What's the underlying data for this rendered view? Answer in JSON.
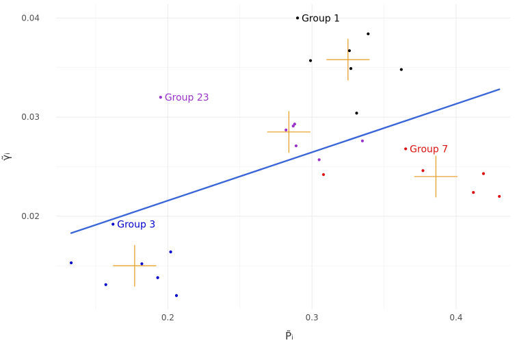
{
  "chart_data": {
    "type": "scatter",
    "xlabel": "P̃ᵢ",
    "ylabel": "γ̃ᵢ",
    "xlim": [
      0.1225,
      0.4375
    ],
    "ylim": [
      0.0106,
      0.0414
    ],
    "x_ticks": [
      {
        "value": 0.2,
        "label": "0.2"
      },
      {
        "value": 0.3,
        "label": "0.3"
      },
      {
        "value": 0.4,
        "label": "0.4"
      }
    ],
    "y_ticks": [
      {
        "value": 0.02,
        "label": "0.02"
      },
      {
        "value": 0.03,
        "label": "0.03"
      },
      {
        "value": 0.04,
        "label": "0.04"
      }
    ],
    "grid": true,
    "series": [
      {
        "name": "Group 1",
        "color": "#000000",
        "label": {
          "text": "Group 1",
          "x": 0.29,
          "y": 0.04
        },
        "points": [
          [
            0.29,
            0.04
          ],
          [
            0.339,
            0.0384
          ],
          [
            0.326,
            0.0367
          ],
          [
            0.299,
            0.0357
          ],
          [
            0.327,
            0.0349
          ],
          [
            0.362,
            0.0348
          ],
          [
            0.331,
            0.0304
          ]
        ],
        "center": [
          0.325,
          0.0358
        ]
      },
      {
        "name": "Group 23",
        "color": "#9933cc",
        "label": {
          "text": "Group 23",
          "x": 0.195,
          "y": 0.032
        },
        "points": [
          [
            0.195,
            0.032
          ],
          [
            0.288,
            0.0293
          ],
          [
            0.287,
            0.0291
          ],
          [
            0.282,
            0.0287
          ],
          [
            0.289,
            0.0271
          ],
          [
            0.335,
            0.0276
          ],
          [
            0.305,
            0.0257
          ]
        ],
        "center": [
          0.284,
          0.0285
        ]
      },
      {
        "name": "Group 7",
        "color": "#dd1111",
        "label": {
          "text": "Group 7",
          "x": 0.365,
          "y": 0.0268
        },
        "points": [
          [
            0.365,
            0.0268
          ],
          [
            0.377,
            0.0246
          ],
          [
            0.308,
            0.0242
          ],
          [
            0.419,
            0.0243
          ],
          [
            0.412,
            0.0224
          ],
          [
            0.43,
            0.022
          ]
        ],
        "center": [
          0.386,
          0.024
        ]
      },
      {
        "name": "Group 3",
        "color": "#0000cc",
        "label": {
          "text": "Group 3",
          "x": 0.162,
          "y": 0.0192
        },
        "points": [
          [
            0.162,
            0.0192
          ],
          [
            0.202,
            0.0164
          ],
          [
            0.133,
            0.0153
          ],
          [
            0.182,
            0.0152
          ],
          [
            0.193,
            0.0138
          ],
          [
            0.157,
            0.0131
          ],
          [
            0.206,
            0.012
          ]
        ],
        "center": [
          0.177,
          0.015
        ]
      }
    ],
    "crosshairs": {
      "color": "#e69a1a",
      "half_width_x": 0.015,
      "half_height_y": 0.0021
    },
    "trend_line": {
      "color": "#3a66d8",
      "x": [
        0.133,
        0.43
      ],
      "y": [
        0.0183,
        0.0328
      ]
    }
  }
}
